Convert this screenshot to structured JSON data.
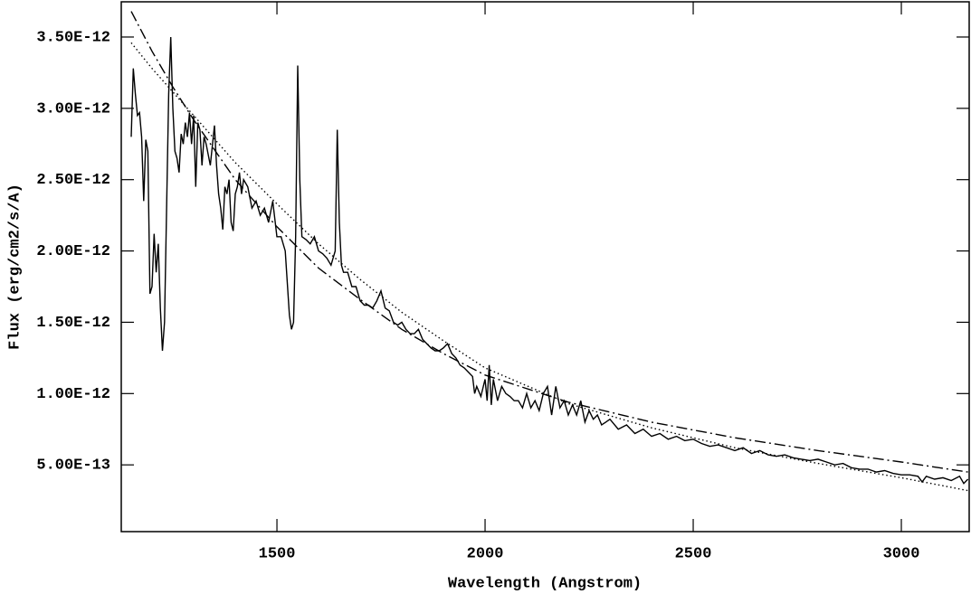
{
  "chart_data": {
    "type": "line",
    "x_label": "Wavelength (Angstrom)",
    "y_label": "Flux (erg/cm2/s/A)",
    "xlim": [
      1126,
      3163
    ],
    "ylim": [
      3.2e-14,
      3.747e-12
    ],
    "xticks": [
      1500,
      2000,
      2500,
      3000
    ],
    "yticks": [
      {
        "value": 5e-13,
        "label": "5.00E-13"
      },
      {
        "value": 1e-12,
        "label": "1.00E-12"
      },
      {
        "value": 1.5e-12,
        "label": "1.50E-12"
      },
      {
        "value": 2e-12,
        "label": "2.00E-12"
      },
      {
        "value": 2.5e-12,
        "label": "2.50E-12"
      },
      {
        "value": 3e-12,
        "label": "3.00E-12"
      },
      {
        "value": 3.5e-12,
        "label": "3.50E-12"
      }
    ],
    "series": [
      {
        "color": "#000000",
        "style": "solid",
        "x": [
          1150,
          1155,
          1160,
          1165,
          1170,
          1175,
          1180,
          1185,
          1190,
          1195,
          1200,
          1205,
          1210,
          1215,
          1220,
          1225,
          1230,
          1235,
          1240,
          1245,
          1250,
          1255,
          1260,
          1265,
          1270,
          1275,
          1280,
          1285,
          1290,
          1295,
          1300,
          1305,
          1310,
          1315,
          1320,
          1325,
          1330,
          1340,
          1350,
          1355,
          1360,
          1365,
          1370,
          1375,
          1380,
          1385,
          1390,
          1395,
          1400,
          1405,
          1410,
          1415,
          1420,
          1430,
          1440,
          1450,
          1460,
          1470,
          1480,
          1490,
          1500,
          1510,
          1520,
          1530,
          1535,
          1540,
          1545,
          1550,
          1555,
          1560,
          1570,
          1580,
          1590,
          1600,
          1610,
          1620,
          1630,
          1640,
          1645,
          1650,
          1655,
          1660,
          1670,
          1680,
          1690,
          1700,
          1710,
          1720,
          1730,
          1740,
          1750,
          1760,
          1770,
          1780,
          1790,
          1800,
          1810,
          1820,
          1830,
          1840,
          1850,
          1860,
          1870,
          1880,
          1890,
          1900,
          1910,
          1920,
          1930,
          1940,
          1950,
          1960,
          1970,
          1975,
          1980,
          1990,
          2000,
          2005,
          2010,
          2015,
          2020,
          2030,
          2040,
          2050,
          2060,
          2070,
          2080,
          2090,
          2100,
          2110,
          2120,
          2130,
          2140,
          2150,
          2160,
          2170,
          2180,
          2190,
          2200,
          2210,
          2220,
          2230,
          2240,
          2250,
          2260,
          2270,
          2280,
          2290,
          2300,
          2320,
          2340,
          2360,
          2380,
          2400,
          2420,
          2440,
          2460,
          2480,
          2500,
          2520,
          2540,
          2560,
          2580,
          2600,
          2620,
          2640,
          2660,
          2680,
          2700,
          2720,
          2740,
          2760,
          2780,
          2800,
          2820,
          2840,
          2860,
          2880,
          2900,
          2920,
          2940,
          2960,
          2980,
          3000,
          3020,
          3040,
          3050,
          3060,
          3080,
          3100,
          3120,
          3140,
          3150,
          3160
        ],
        "values": [
          2.8e-12,
          3.28e-12,
          3.1e-12,
          2.95e-12,
          2.97e-12,
          2.8e-12,
          2.35e-12,
          2.78e-12,
          2.7e-12,
          1.7e-12,
          1.75e-12,
          2.12e-12,
          1.85e-12,
          2.05e-12,
          1.6e-12,
          1.3e-12,
          1.5e-12,
          2.3e-12,
          3.1e-12,
          3.5e-12,
          3e-12,
          2.7e-12,
          2.65e-12,
          2.55e-12,
          2.82e-12,
          2.75e-12,
          2.9e-12,
          2.8e-12,
          2.97e-12,
          2.75e-12,
          2.95e-12,
          2.45e-12,
          2.9e-12,
          2.85e-12,
          2.6e-12,
          2.8e-12,
          2.75e-12,
          2.6e-12,
          2.88e-12,
          2.6e-12,
          2.4e-12,
          2.3e-12,
          2.15e-12,
          2.45e-12,
          2.4e-12,
          2.5e-12,
          2.2e-12,
          2.14e-12,
          2.4e-12,
          2.45e-12,
          2.55e-12,
          2.4e-12,
          2.5e-12,
          2.45e-12,
          2.3e-12,
          2.35e-12,
          2.25e-12,
          2.3e-12,
          2.2e-12,
          2.35e-12,
          2.1e-12,
          2.1e-12,
          2e-12,
          1.55e-12,
          1.45e-12,
          1.5e-12,
          2.1e-12,
          3.3e-12,
          2.5e-12,
          2.1e-12,
          2.08e-12,
          2.05e-12,
          2.1e-12,
          2e-12,
          1.98e-12,
          1.95e-12,
          1.9e-12,
          2e-12,
          2.85e-12,
          2.2e-12,
          1.9e-12,
          1.85e-12,
          1.85e-12,
          1.75e-12,
          1.75e-12,
          1.65e-12,
          1.62e-12,
          1.62e-12,
          1.6e-12,
          1.65e-12,
          1.72e-12,
          1.6e-12,
          1.58e-12,
          1.5e-12,
          1.48e-12,
          1.5e-12,
          1.45e-12,
          1.42e-12,
          1.42e-12,
          1.45e-12,
          1.38e-12,
          1.35e-12,
          1.32e-12,
          1.3e-12,
          1.3e-12,
          1.32e-12,
          1.35e-12,
          1.28e-12,
          1.25e-12,
          1.2e-12,
          1.18e-12,
          1.15e-12,
          1.12e-12,
          1e-12,
          1.05e-12,
          9.8e-13,
          1.1e-12,
          9.5e-13,
          1.2e-12,
          9.2e-13,
          1.1e-12,
          9.5e-13,
          1.05e-12,
          1e-12,
          9.8e-13,
          9.5e-13,
          9.5e-13,
          9e-13,
          1e-12,
          9e-13,
          9.5e-13,
          8.8e-13,
          1e-12,
          1.05e-12,
          8.5e-13,
          1.05e-12,
          9e-13,
          9.5e-13,
          8.5e-13,
          9.2e-13,
          8.5e-13,
          9.5e-13,
          8e-13,
          8.8e-13,
          8.2e-13,
          8.5e-13,
          7.8e-13,
          8e-13,
          8.2e-13,
          7.5e-13,
          7.8e-13,
          7.2e-13,
          7.5e-13,
          7e-13,
          7.2e-13,
          6.8e-13,
          7e-13,
          6.7e-13,
          6.8e-13,
          6.5e-13,
          6.3e-13,
          6.4e-13,
          6.2e-13,
          6e-13,
          6.2e-13,
          5.8e-13,
          6e-13,
          5.7e-13,
          5.6e-13,
          5.7e-13,
          5.5e-13,
          5.4e-13,
          5.3e-13,
          5.4e-13,
          5.2e-13,
          5e-13,
          5.1e-13,
          4.8e-13,
          4.7e-13,
          4.7e-13,
          4.5e-13,
          4.6e-13,
          4.4e-13,
          4.3e-13,
          4.3e-13,
          4.2e-13,
          3.8e-13,
          4.2e-13,
          4e-13,
          4.1e-13,
          3.9e-13,
          4.2e-13,
          3.7e-13,
          4e-13
        ]
      },
      {
        "color": "#000000",
        "style": "dotted",
        "x": [
          1150,
          1200,
          1300,
          1400,
          1500,
          1600,
          1700,
          1800,
          1900,
          2000,
          2200,
          2400,
          2600,
          2800,
          3000,
          3160
        ],
        "values": [
          3.46e-12,
          3.28e-12,
          2.95e-12,
          2.62e-12,
          2.33e-12,
          2.05e-12,
          1.8e-12,
          1.57e-12,
          1.37e-12,
          1.18e-12,
          9.3e-13,
          7.6e-13,
          6.2e-13,
          5.1e-13,
          4.1e-13,
          3.2e-13
        ]
      },
      {
        "color": "#000000",
        "style": "dashdot",
        "x": [
          1150,
          1200,
          1250,
          1300,
          1400,
          1500,
          1600,
          1700,
          1800,
          1900,
          2000,
          2200,
          2400,
          2600,
          2800,
          3000,
          3160
        ],
        "values": [
          3.68e-12,
          3.4e-12,
          3.15e-12,
          2.92e-12,
          2.5e-12,
          2.17e-12,
          1.88e-12,
          1.66e-12,
          1.45e-12,
          1.28e-12,
          1.13e-12,
          9.4e-13,
          8e-13,
          6.9e-13,
          6e-13,
          5.2e-13,
          4.5e-13
        ]
      }
    ]
  }
}
